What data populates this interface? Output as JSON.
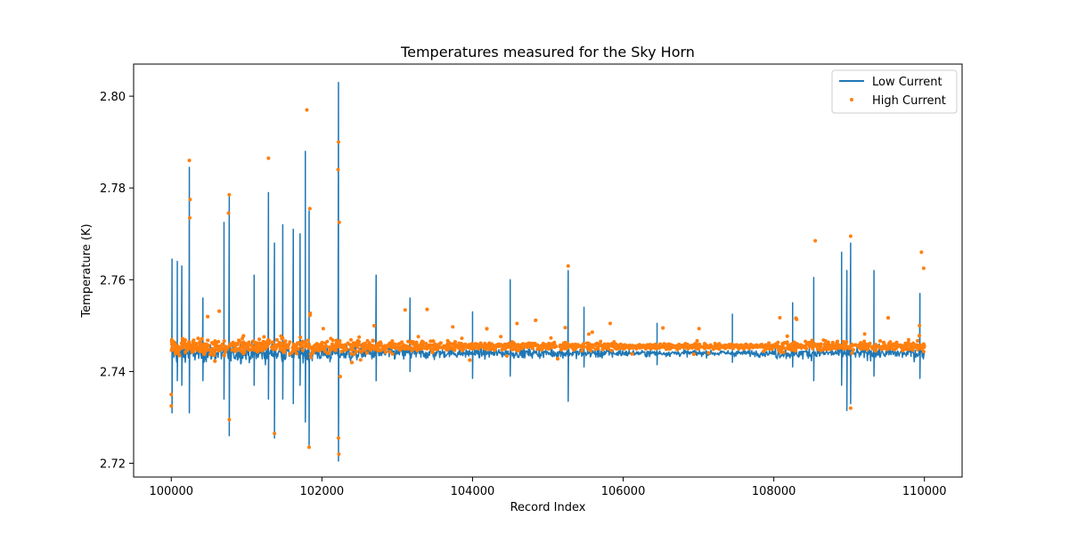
{
  "chart_data": {
    "type": "line+scatter",
    "title": "Temperatures measured for the Sky Horn",
    "xlabel": "Record Index",
    "ylabel": "Temperature (K)",
    "xlim": [
      99500,
      110500
    ],
    "ylim": [
      2.717,
      2.807
    ],
    "x_ticks": [
      100000,
      102000,
      104000,
      106000,
      108000,
      110000
    ],
    "x_tick_labels": [
      "100000",
      "102000",
      "104000",
      "106000",
      "108000",
      "110000"
    ],
    "y_ticks": [
      2.72,
      2.74,
      2.76,
      2.78,
      2.8
    ],
    "y_tick_labels": [
      "2.72",
      "2.74",
      "2.76",
      "2.78",
      "2.80"
    ],
    "grid": false,
    "legend_position": "top-right",
    "series": [
      {
        "name": "Low Current",
        "kind": "line",
        "color": "#1f77b4",
        "baseline": 2.744,
        "x_range": [
          100000,
          110000
        ],
        "spikes": [
          {
            "x": 100010,
            "low": 2.731,
            "high": 2.7645
          },
          {
            "x": 100080,
            "low": 2.738,
            "high": 2.764
          },
          {
            "x": 100140,
            "low": 2.737,
            "high": 2.763
          },
          {
            "x": 100240,
            "low": 2.731,
            "high": 2.7845
          },
          {
            "x": 100420,
            "low": 2.738,
            "high": 2.756
          },
          {
            "x": 100700,
            "low": 2.734,
            "high": 2.7725
          },
          {
            "x": 100770,
            "low": 2.726,
            "high": 2.778
          },
          {
            "x": 101100,
            "low": 2.737,
            "high": 2.761
          },
          {
            "x": 101290,
            "low": 2.734,
            "high": 2.779
          },
          {
            "x": 101370,
            "low": 2.7255,
            "high": 2.768
          },
          {
            "x": 101480,
            "low": 2.734,
            "high": 2.772
          },
          {
            "x": 101620,
            "low": 2.733,
            "high": 2.771
          },
          {
            "x": 101710,
            "low": 2.737,
            "high": 2.77
          },
          {
            "x": 101780,
            "low": 2.729,
            "high": 2.788
          },
          {
            "x": 101830,
            "low": 2.724,
            "high": 2.775
          },
          {
            "x": 102220,
            "low": 2.7205,
            "high": 2.803
          },
          {
            "x": 102720,
            "low": 2.738,
            "high": 2.761
          },
          {
            "x": 103170,
            "low": 2.74,
            "high": 2.756
          },
          {
            "x": 104000,
            "low": 2.7385,
            "high": 2.753
          },
          {
            "x": 104500,
            "low": 2.739,
            "high": 2.76
          },
          {
            "x": 105270,
            "low": 2.7335,
            "high": 2.762
          },
          {
            "x": 105480,
            "low": 2.741,
            "high": 2.754
          },
          {
            "x": 106450,
            "low": 2.7415,
            "high": 2.7505
          },
          {
            "x": 107450,
            "low": 2.742,
            "high": 2.7525
          },
          {
            "x": 108250,
            "low": 2.741,
            "high": 2.755
          },
          {
            "x": 108530,
            "low": 2.738,
            "high": 2.7605
          },
          {
            "x": 108900,
            "low": 2.737,
            "high": 2.766
          },
          {
            "x": 108970,
            "low": 2.7315,
            "high": 2.762
          },
          {
            "x": 109020,
            "low": 2.733,
            "high": 2.768
          },
          {
            "x": 109330,
            "low": 2.739,
            "high": 2.762
          },
          {
            "x": 109940,
            "low": 2.7385,
            "high": 2.757
          }
        ]
      },
      {
        "name": "High Current",
        "kind": "scatter",
        "color": "#ff7f0e",
        "baseline": 2.7455,
        "x_range": [
          100000,
          110000
        ],
        "outliers": [
          {
            "x": 100240,
            "y": 2.786
          },
          {
            "x": 100250,
            "y": 2.7775
          },
          {
            "x": 100245,
            "y": 2.7735
          },
          {
            "x": 100770,
            "y": 2.7785
          },
          {
            "x": 100760,
            "y": 2.7745
          },
          {
            "x": 100770,
            "y": 2.7295
          },
          {
            "x": 101290,
            "y": 2.7865
          },
          {
            "x": 101370,
            "y": 2.7265
          },
          {
            "x": 101800,
            "y": 2.797
          },
          {
            "x": 101840,
            "y": 2.7755
          },
          {
            "x": 101830,
            "y": 2.7235
          },
          {
            "x": 102220,
            "y": 2.79
          },
          {
            "x": 102215,
            "y": 2.784
          },
          {
            "x": 102230,
            "y": 2.7725
          },
          {
            "x": 102220,
            "y": 2.7255
          },
          {
            "x": 102225,
            "y": 2.722
          },
          {
            "x": 105270,
            "y": 2.763
          },
          {
            "x": 108550,
            "y": 2.7685
          },
          {
            "x": 109020,
            "y": 2.7695
          },
          {
            "x": 109020,
            "y": 2.732
          },
          {
            "x": 109960,
            "y": 2.766
          },
          {
            "x": 109990,
            "y": 2.7625
          },
          {
            "x": 100000,
            "y": 2.7325
          },
          {
            "x": 100000,
            "y": 2.735
          }
        ]
      }
    ]
  }
}
